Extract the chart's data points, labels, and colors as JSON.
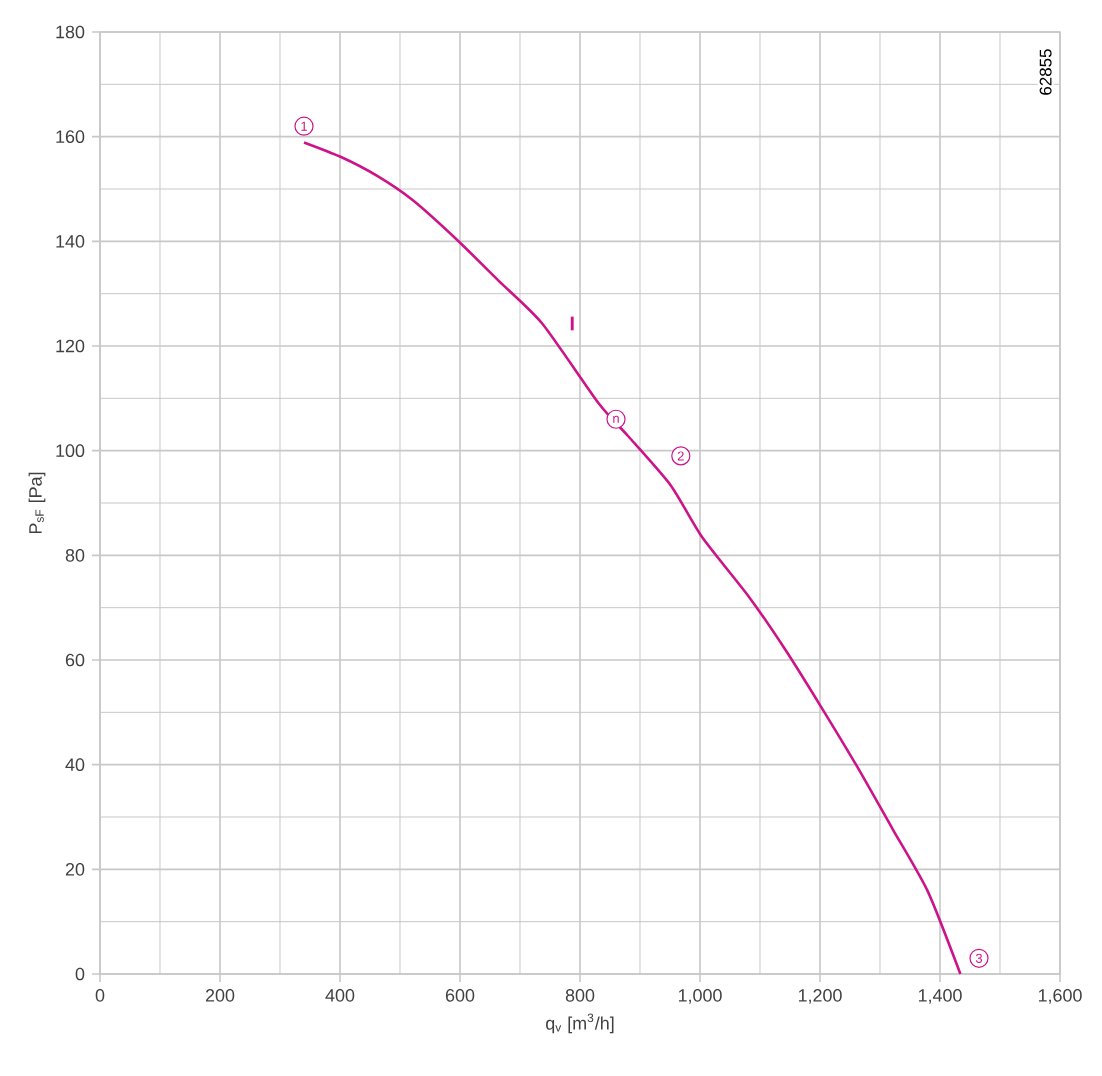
{
  "chart_data": {
    "type": "line",
    "xlabel": "q$_{v}$ [m$^{3}$/h]",
    "ylabel": "P$_{sF}$ [Pa]",
    "xlim": [
      0,
      1600
    ],
    "ylim": [
      0,
      180
    ],
    "xticks": [
      0,
      200,
      400,
      600,
      800,
      {
        "value": 1000,
        "label": "1,000"
      },
      {
        "value": 1200,
        "label": "1,200"
      },
      {
        "value": 1400,
        "label": "1,400"
      },
      {
        "value": 1600,
        "label": "1,600"
      }
    ],
    "yticks": [
      0,
      20,
      40,
      60,
      80,
      100,
      120,
      140,
      160,
      180
    ],
    "grid": true,
    "series": [
      {
        "name": "I",
        "color": "#cc1488",
        "x": [
          340,
          400,
          462,
          522,
          594,
          665,
          737,
          832,
          880,
          951,
          1004,
          1082,
          1142,
          1201,
          1261,
          1321,
          1380,
          1434
        ],
        "values": [
          158.9,
          156.2,
          152.5,
          147.8,
          140.4,
          132.4,
          124.3,
          108.9,
          102.8,
          93.4,
          83.4,
          72.0,
          62.0,
          51.2,
          39.8,
          27.7,
          15.7,
          0
        ]
      }
    ],
    "annotations": [
      {
        "text": "1",
        "x": 340,
        "y": 162
      },
      {
        "text": "n",
        "x": 860,
        "y": 106
      },
      {
        "text": "2",
        "x": 968,
        "y": 99
      },
      {
        "text": "3",
        "x": 1465,
        "y": 3
      },
      "62855"
    ]
  }
}
